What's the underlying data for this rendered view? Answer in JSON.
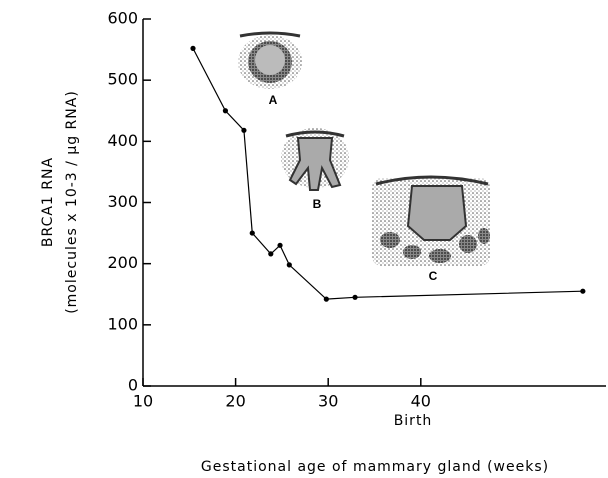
{
  "chart_data": {
    "type": "line",
    "y_label_lines": [
      "BRCA1 RNA",
      "(molecules x 10-3 / µg RNA)"
    ],
    "x_label": "Gestational age of mammary gland (weeks)",
    "annotations": [
      "Birth",
      "A",
      "B",
      "C"
    ],
    "x": [
      15.4,
      18.9,
      20.9,
      21.8,
      23.8,
      24.8,
      25.8,
      29.8,
      32.9,
      57.5
    ],
    "values": [
      552,
      450,
      418,
      250,
      216,
      230,
      198,
      142,
      145,
      155
    ],
    "color": "#000000",
    "xlim": [
      10,
      60
    ],
    "xticks": [
      10,
      20,
      30,
      40
    ],
    "ylim": [
      0,
      600
    ],
    "yticks": [
      0,
      100,
      200,
      300,
      400,
      500,
      600
    ],
    "grid": false
  }
}
